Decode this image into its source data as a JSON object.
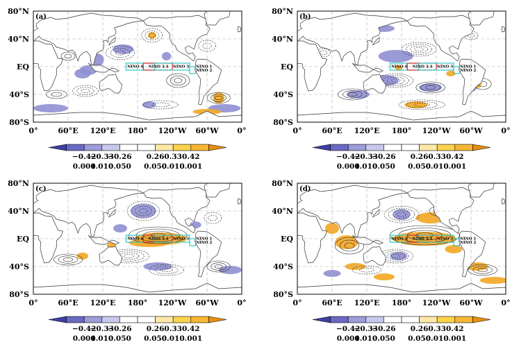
{
  "lat_labels": [
    "80°N",
    "40°N",
    "EQ",
    "40°S",
    "80°S"
  ],
  "lon_labels": [
    "0°",
    "60°E",
    "120°E",
    "180°",
    "120°W",
    "60°W",
    "0°"
  ],
  "region_labels": {
    "nino4": "NINO 4",
    "nino34": "NINO 3.4",
    "nino3": "NINO 3",
    "nino1": "NINO 1",
    "nino2": "NINO 2"
  },
  "colorbar": {
    "correlation_labels": [
      "−0.42",
      "−0.33",
      "−0.26",
      "0.26",
      "0.33",
      "0.42"
    ],
    "significance_labels": [
      "0.001",
      "0.010",
      "0.050",
      "0.050",
      "0.010",
      "0.001"
    ],
    "colors": [
      "#3f3fa7",
      "#6a6ac4",
      "#9c9cd9",
      "#c8c8ec",
      "#ffffff",
      "#ffffff",
      "#ffe9a6",
      "#ffd24d",
      "#f7b733",
      "#e98f0d"
    ]
  },
  "colors": {
    "land": "#ffffff",
    "coast": "#333333",
    "negative_shade": "#8f8fd3",
    "positive_shade": "#f3a623",
    "nino_box": "#2ec4c4",
    "nino34_box": "#d92b2b"
  },
  "panels": [
    {
      "label": "(a)",
      "strength": 0.25
    },
    {
      "label": "(b)",
      "strength": 0.45
    },
    {
      "label": "(c)",
      "strength": 0.85
    },
    {
      "label": "(d)",
      "strength": 1.0
    }
  ]
}
